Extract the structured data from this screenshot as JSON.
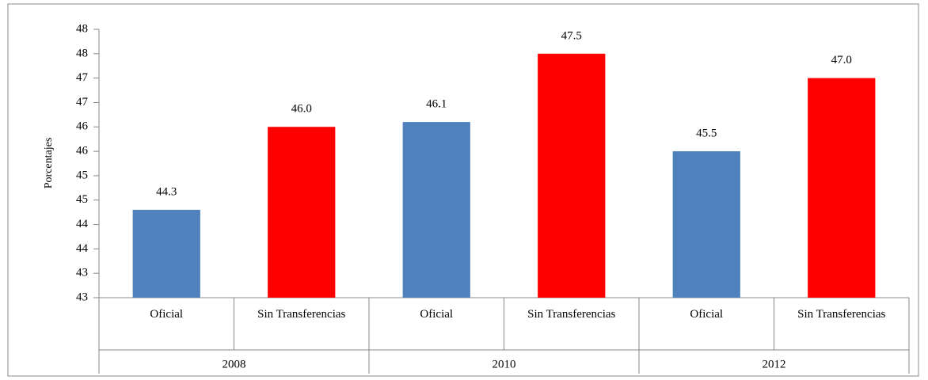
{
  "chart_data": {
    "type": "bar",
    "y_label": "Porcentajes",
    "categories": [
      "Oficial",
      "Sin Transferencias",
      "Oficial",
      "Sin Transferencias",
      "Oficial",
      "Sin Transferencias"
    ],
    "groups": [
      "2008",
      "2010",
      "2012"
    ],
    "values": [
      44.3,
      46.0,
      46.1,
      47.5,
      45.5,
      47.0
    ],
    "value_labels": [
      "44.3",
      "46.0",
      "46.1",
      "47.5",
      "45.5",
      "47.0"
    ],
    "colors": [
      "#4f81bd",
      "#ff0000",
      "#4f81bd",
      "#ff0000",
      "#4f81bd",
      "#ff0000"
    ],
    "ylim": [
      42.5,
      48
    ],
    "yticks": [
      {
        "value": 42.5,
        "label": "43"
      },
      {
        "value": 43,
        "label": "43"
      },
      {
        "value": 43.5,
        "label": "44"
      },
      {
        "value": 44,
        "label": "44"
      },
      {
        "value": 44.5,
        "label": "45"
      },
      {
        "value": 45,
        "label": "45"
      },
      {
        "value": 45.5,
        "label": "46"
      },
      {
        "value": 46,
        "label": "46"
      },
      {
        "value": 46.5,
        "label": "47"
      },
      {
        "value": 47,
        "label": "47"
      },
      {
        "value": 47.5,
        "label": "48"
      },
      {
        "value": 48,
        "label": "48"
      }
    ],
    "grid": false
  }
}
